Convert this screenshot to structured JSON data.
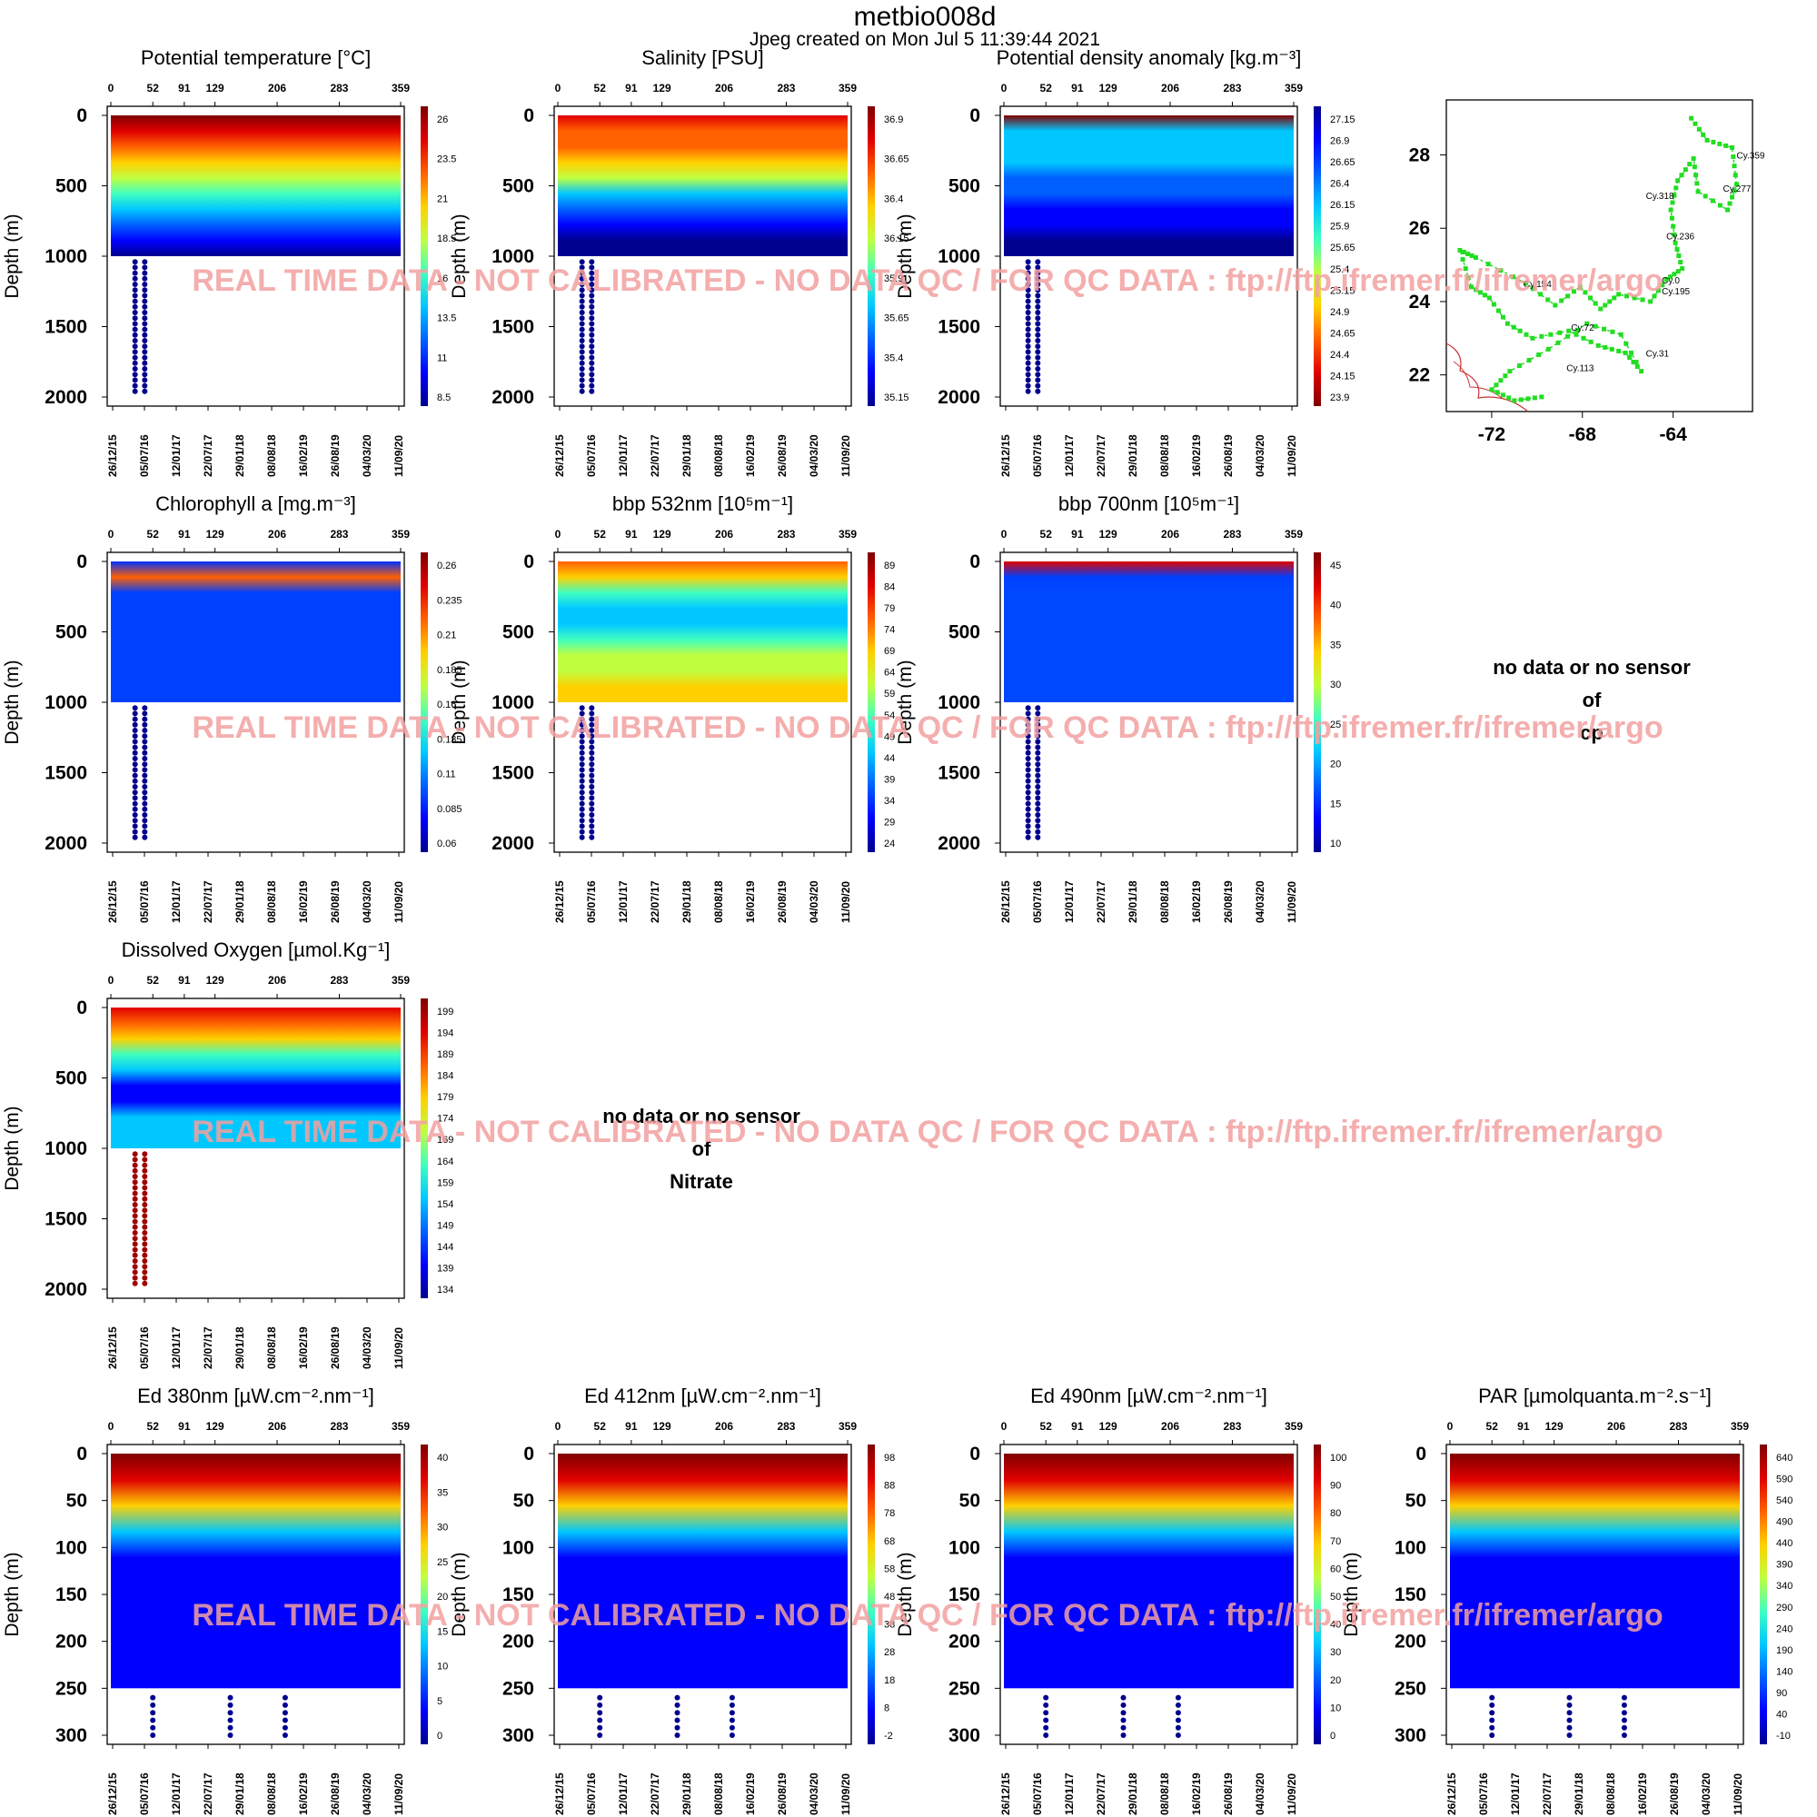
{
  "header": {
    "title": "metbio008d",
    "subtitle": "Jpeg created on  Mon Jul  5 11:39:44 2021"
  },
  "watermark": "REAL TIME DATA - NOT CALIBRATED - NO DATA QC   /  FOR QC DATA : ftp://ftp.ifremer.fr/ifremer/argo",
  "colors": {
    "jet": [
      "#00008f",
      "#0000ff",
      "#0060ff",
      "#00c8ff",
      "#40ffc0",
      "#c0ff40",
      "#ffd000",
      "#ff6000",
      "#e00000",
      "#800000"
    ],
    "track": "#22dd22",
    "watermark": "#f2a0a0"
  },
  "shared": {
    "ylabel": "Depth (m)",
    "cycle_ticks": [
      "0",
      "52",
      "91",
      "129",
      "206",
      "283",
      "359"
    ],
    "cycle_values": [
      0,
      52,
      91,
      129,
      206,
      283,
      359
    ],
    "date_ticks": [
      "26/12/15",
      "05/07/16",
      "12/01/17",
      "22/07/17",
      "29/01/18",
      "08/08/18",
      "16/02/19",
      "26/08/19",
      "04/03/20",
      "11/09/20"
    ]
  },
  "nodata_panels": [
    {
      "lines": [
        "no data or no sensor",
        "of",
        "cp"
      ]
    },
    {
      "lines": [
        "no data or no sensor",
        "of",
        "Nitrate"
      ]
    }
  ],
  "chart_data": [
    {
      "type": "heatmap",
      "title": "Potential temperature [°C]",
      "ylabel": "Depth (m)",
      "ylim": [
        2000,
        0
      ],
      "y_ticks": [
        0,
        500,
        1000,
        1500,
        2000
      ],
      "colorbar": {
        "ticks": [
          "26",
          "23.5",
          "21",
          "18.5",
          "16",
          "13.5",
          "11",
          "8.5"
        ],
        "min": 8.5,
        "max": 27
      },
      "x_cycles": [
        "0",
        "52",
        "91",
        "129",
        "206",
        "283",
        "359"
      ]
    },
    {
      "type": "heatmap",
      "title": "Salinity [PSU]",
      "ylabel": "Depth (m)",
      "ylim": [
        2000,
        0
      ],
      "y_ticks": [
        0,
        500,
        1000,
        1500,
        2000
      ],
      "colorbar": {
        "ticks": [
          "36.9",
          "36.65",
          "36.4",
          "36.15",
          "35.9",
          "35.65",
          "35.4",
          "35.15"
        ],
        "min": 35.15,
        "max": 37.0
      },
      "x_cycles": [
        "0",
        "52",
        "91",
        "129",
        "206",
        "283",
        "359"
      ]
    },
    {
      "type": "heatmap",
      "title": "Potential density anomaly [kg.m⁻³]",
      "ylabel": "Depth (m)",
      "ylim": [
        2000,
        0
      ],
      "y_ticks": [
        0,
        500,
        1000,
        1500,
        2000
      ],
      "colorbar": {
        "ticks": [
          "27.15",
          "26.9",
          "26.65",
          "26.4",
          "26.15",
          "25.9",
          "25.65",
          "25.4",
          "25.15",
          "24.9",
          "24.65",
          "24.4",
          "24.15",
          "23.9"
        ],
        "min": 23.9,
        "max": 27.3,
        "reversed": true
      },
      "x_cycles": [
        "0",
        "52",
        "91",
        "129",
        "206",
        "283",
        "359"
      ]
    },
    {
      "type": "scatter",
      "title": "",
      "x_ticks": [
        "-72",
        "-68",
        "-64"
      ],
      "y_ticks": [
        "22",
        "24",
        "26",
        "28"
      ],
      "xlim": [
        -74,
        -60.5
      ],
      "ylim": [
        21,
        29.5
      ],
      "labels": [
        {
          "text": "Cy.359",
          "x": -61.2,
          "y": 27.9
        },
        {
          "text": "Cy.277",
          "x": -61.8,
          "y": 27.0
        },
        {
          "text": "Cy.318",
          "x": -65.2,
          "y": 26.8
        },
        {
          "text": "Cy.236",
          "x": -64.3,
          "y": 25.7
        },
        {
          "text": "Cy.154",
          "x": -70.6,
          "y": 24.4
        },
        {
          "text": "Cy.0",
          "x": -64.5,
          "y": 24.5
        },
        {
          "text": "Cy.195",
          "x": -64.5,
          "y": 24.2
        },
        {
          "text": "Cy.72",
          "x": -68.5,
          "y": 23.2
        },
        {
          "text": "Cy.31",
          "x": -65.2,
          "y": 22.5
        },
        {
          "text": "Cy.113",
          "x": -68.7,
          "y": 22.1
        }
      ]
    },
    {
      "type": "heatmap",
      "title": "Chlorophyll a [mg.m⁻³]",
      "ylabel": "Depth (m)",
      "ylim": [
        2000,
        0
      ],
      "y_ticks": [
        0,
        500,
        1000,
        1500,
        2000
      ],
      "colorbar": {
        "ticks": [
          "0.26",
          "0.235",
          "0.21",
          "0.185",
          "0.16",
          "0.135",
          "0.11",
          "0.085",
          "0.06"
        ],
        "min": 0.06,
        "max": 0.27
      },
      "x_cycles": [
        "0",
        "52",
        "91",
        "129",
        "206",
        "283",
        "359"
      ]
    },
    {
      "type": "heatmap",
      "title": "bbp 532nm [10⁵m⁻¹]",
      "ylabel": "Depth (m)",
      "ylim": [
        2000,
        0
      ],
      "y_ticks": [
        0,
        500,
        1000,
        1500,
        2000
      ],
      "colorbar": {
        "ticks": [
          "89",
          "84",
          "79",
          "74",
          "69",
          "64",
          "59",
          "54",
          "49",
          "44",
          "39",
          "34",
          "29",
          "24"
        ],
        "min": 24,
        "max": 90
      },
      "x_cycles": [
        "0",
        "52",
        "91",
        "129",
        "206",
        "283",
        "359"
      ]
    },
    {
      "type": "heatmap",
      "title": "bbp 700nm [10⁵m⁻¹]",
      "ylabel": "Depth (m)",
      "ylim": [
        2000,
        0
      ],
      "y_ticks": [
        0,
        500,
        1000,
        1500,
        2000
      ],
      "colorbar": {
        "ticks": [
          "45",
          "40",
          "35",
          "30",
          "25",
          "20",
          "15",
          "10"
        ],
        "min": 10,
        "max": 46
      },
      "x_cycles": [
        "0",
        "52",
        "91",
        "129",
        "206",
        "283",
        "359"
      ]
    },
    {
      "type": "heatmap",
      "title": "Dissolved Oxygen [µmol.Kg⁻¹]",
      "ylabel": "Depth (m)",
      "ylim": [
        2000,
        0
      ],
      "y_ticks": [
        0,
        500,
        1000,
        1500,
        2000
      ],
      "colorbar": {
        "ticks": [
          "199",
          "194",
          "189",
          "184",
          "179",
          "174",
          "169",
          "164",
          "159",
          "154",
          "149",
          "144",
          "139",
          "134"
        ],
        "min": 134,
        "max": 200
      },
      "x_cycles": [
        "0",
        "52",
        "91",
        "129",
        "206",
        "283",
        "359"
      ]
    },
    {
      "type": "heatmap",
      "title": "Ed 380nm [µW.cm⁻².nm⁻¹]",
      "ylabel": "Depth (m)",
      "ylim": [
        300,
        0
      ],
      "y_ticks": [
        0,
        50,
        100,
        150,
        200,
        250,
        300
      ],
      "colorbar": {
        "ticks": [
          "40",
          "35",
          "30",
          "25",
          "20",
          "15",
          "10",
          "5",
          "0"
        ],
        "min": 0,
        "max": 42
      },
      "x_cycles": [
        "0",
        "52",
        "91",
        "129",
        "206",
        "283",
        "359"
      ]
    },
    {
      "type": "heatmap",
      "title": "Ed 412nm [µW.cm⁻².nm⁻¹]",
      "ylabel": "Depth (m)",
      "ylim": [
        300,
        0
      ],
      "y_ticks": [
        0,
        50,
        100,
        150,
        200,
        250,
        300
      ],
      "colorbar": {
        "ticks": [
          "98",
          "88",
          "78",
          "68",
          "58",
          "48",
          "38",
          "28",
          "18",
          "8",
          "-2"
        ],
        "min": -2,
        "max": 100
      },
      "x_cycles": [
        "0",
        "52",
        "91",
        "129",
        "206",
        "283",
        "359"
      ]
    },
    {
      "type": "heatmap",
      "title": "Ed 490nm [µW.cm⁻².nm⁻¹]",
      "ylabel": "Depth (m)",
      "ylim": [
        300,
        0
      ],
      "y_ticks": [
        0,
        50,
        100,
        150,
        200,
        250,
        300
      ],
      "colorbar": {
        "ticks": [
          "100",
          "90",
          "80",
          "70",
          "60",
          "50",
          "40",
          "30",
          "20",
          "10",
          "0"
        ],
        "min": 0,
        "max": 105
      },
      "x_cycles": [
        "0",
        "52",
        "91",
        "129",
        "206",
        "283",
        "359"
      ]
    },
    {
      "type": "heatmap",
      "title": "PAR [µmolquanta.m⁻².s⁻¹]",
      "ylabel": "Depth (m)",
      "ylim": [
        300,
        0
      ],
      "y_ticks": [
        0,
        50,
        100,
        150,
        200,
        250,
        300
      ],
      "colorbar": {
        "ticks": [
          "640",
          "590",
          "540",
          "490",
          "440",
          "390",
          "340",
          "290",
          "240",
          "190",
          "140",
          "90",
          "40",
          "-10"
        ],
        "min": -10,
        "max": 660
      },
      "x_cycles": [
        "0",
        "52",
        "91",
        "129",
        "206",
        "283",
        "359"
      ]
    }
  ]
}
